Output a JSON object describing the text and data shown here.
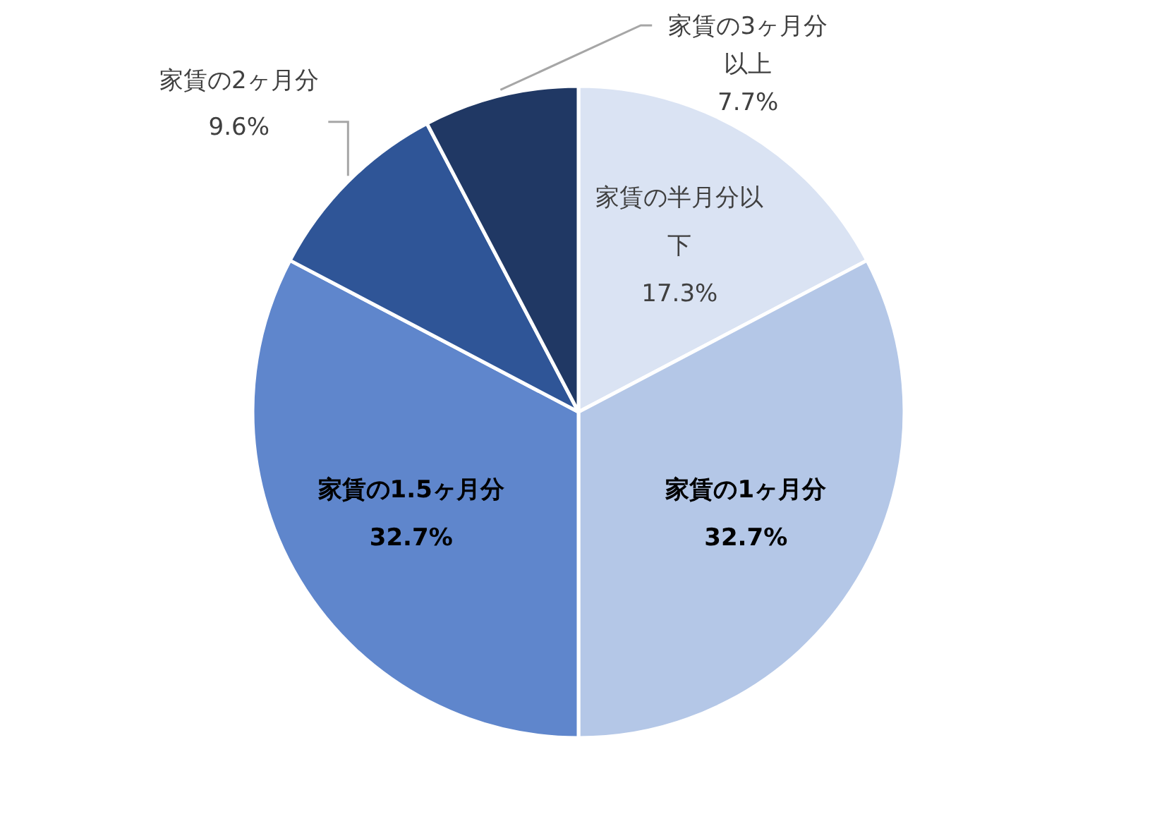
{
  "chart_data": {
    "type": "pie",
    "categories": [
      "家賃の半月分以下",
      "家賃の1ヶ月分",
      "家賃の1.5ヶ月分",
      "家賃の2ヶ月分",
      "家賃の3ヶ月分以上"
    ],
    "values": [
      17.3,
      32.7,
      32.7,
      9.6,
      7.7
    ],
    "colors": [
      "#dae3f3",
      "#b4c7e7",
      "#5f86cc",
      "#2f5597",
      "#203864"
    ],
    "value_labels": [
      "17.3%",
      "32.7%",
      "32.7%",
      "9.6%",
      "7.7%"
    ],
    "legend": false
  }
}
